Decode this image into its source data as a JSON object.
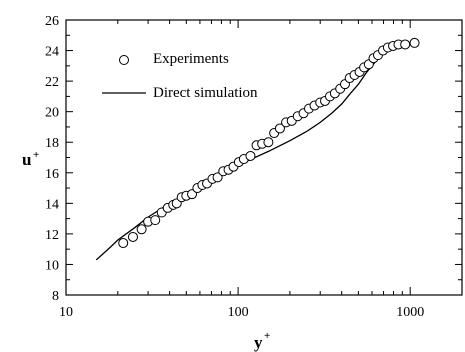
{
  "chart_data": {
    "type": "scatter",
    "xlabel": "y",
    "xlabel_sup": "+",
    "ylabel": "u",
    "ylabel_sup": "+",
    "x_scale": "log",
    "xlim": [
      10,
      2000
    ],
    "ylim": [
      8,
      26
    ],
    "x_ticks": [
      10,
      100,
      1000
    ],
    "x_tick_labels": [
      "10",
      "100",
      "1000"
    ],
    "y_ticks": [
      8,
      10,
      12,
      14,
      16,
      18,
      20,
      22,
      24,
      26
    ],
    "y_tick_labels": [
      "8",
      "10",
      "12",
      "14",
      "16",
      "18",
      "20",
      "22",
      "24",
      "26"
    ],
    "grid": false,
    "legend_position": "top-left",
    "series": [
      {
        "name": "Experiments",
        "style": "open-circle",
        "points": [
          [
            21.5,
            11.4
          ],
          [
            24.5,
            11.8
          ],
          [
            27.5,
            12.3
          ],
          [
            30,
            12.8
          ],
          [
            33,
            12.9
          ],
          [
            36,
            13.4
          ],
          [
            39,
            13.7
          ],
          [
            42,
            13.9
          ],
          [
            44,
            14.0
          ],
          [
            47,
            14.4
          ],
          [
            50,
            14.5
          ],
          [
            54,
            14.6
          ],
          [
            58,
            15.0
          ],
          [
            62,
            15.2
          ],
          [
            66,
            15.3
          ],
          [
            71,
            15.6
          ],
          [
            76,
            15.7
          ],
          [
            82,
            16.1
          ],
          [
            88,
            16.2
          ],
          [
            94,
            16.4
          ],
          [
            101,
            16.7
          ],
          [
            108,
            16.9
          ],
          [
            118,
            17.1
          ],
          [
            128,
            17.8
          ],
          [
            138,
            17.9
          ],
          [
            150,
            18.0
          ],
          [
            162,
            18.6
          ],
          [
            175,
            18.9
          ],
          [
            190,
            19.3
          ],
          [
            205,
            19.4
          ],
          [
            222,
            19.7
          ],
          [
            240,
            19.9
          ],
          [
            258,
            20.2
          ],
          [
            278,
            20.4
          ],
          [
            300,
            20.6
          ],
          [
            320,
            20.7
          ],
          [
            342,
            21.0
          ],
          [
            365,
            21.2
          ],
          [
            392,
            21.5
          ],
          [
            418,
            21.8
          ],
          [
            445,
            22.2
          ],
          [
            475,
            22.4
          ],
          [
            508,
            22.6
          ],
          [
            540,
            22.9
          ],
          [
            575,
            23.1
          ],
          [
            612,
            23.5
          ],
          [
            650,
            23.7
          ],
          [
            695,
            24.0
          ],
          [
            742,
            24.2
          ],
          [
            795,
            24.3
          ],
          [
            855,
            24.4
          ],
          [
            935,
            24.4
          ],
          [
            1060,
            24.5
          ]
        ]
      },
      {
        "name": "Direct simulation",
        "style": "line",
        "points": [
          [
            15,
            10.3
          ],
          [
            18,
            11.1
          ],
          [
            20,
            11.6
          ],
          [
            25,
            12.4
          ],
          [
            30,
            13.1
          ],
          [
            40,
            14.0
          ],
          [
            50,
            14.6
          ],
          [
            70,
            15.6
          ],
          [
            100,
            16.5
          ],
          [
            150,
            17.4
          ],
          [
            200,
            18.1
          ],
          [
            250,
            18.7
          ],
          [
            300,
            19.3
          ],
          [
            350,
            19.9
          ],
          [
            400,
            20.5
          ],
          [
            450,
            21.2
          ],
          [
            500,
            21.8
          ],
          [
            560,
            22.6
          ],
          [
            620,
            23.2
          ],
          [
            700,
            23.8
          ],
          [
            800,
            24.2
          ],
          [
            900,
            24.4
          ],
          [
            1000,
            24.5
          ],
          [
            1060,
            24.5
          ]
        ]
      }
    ]
  }
}
